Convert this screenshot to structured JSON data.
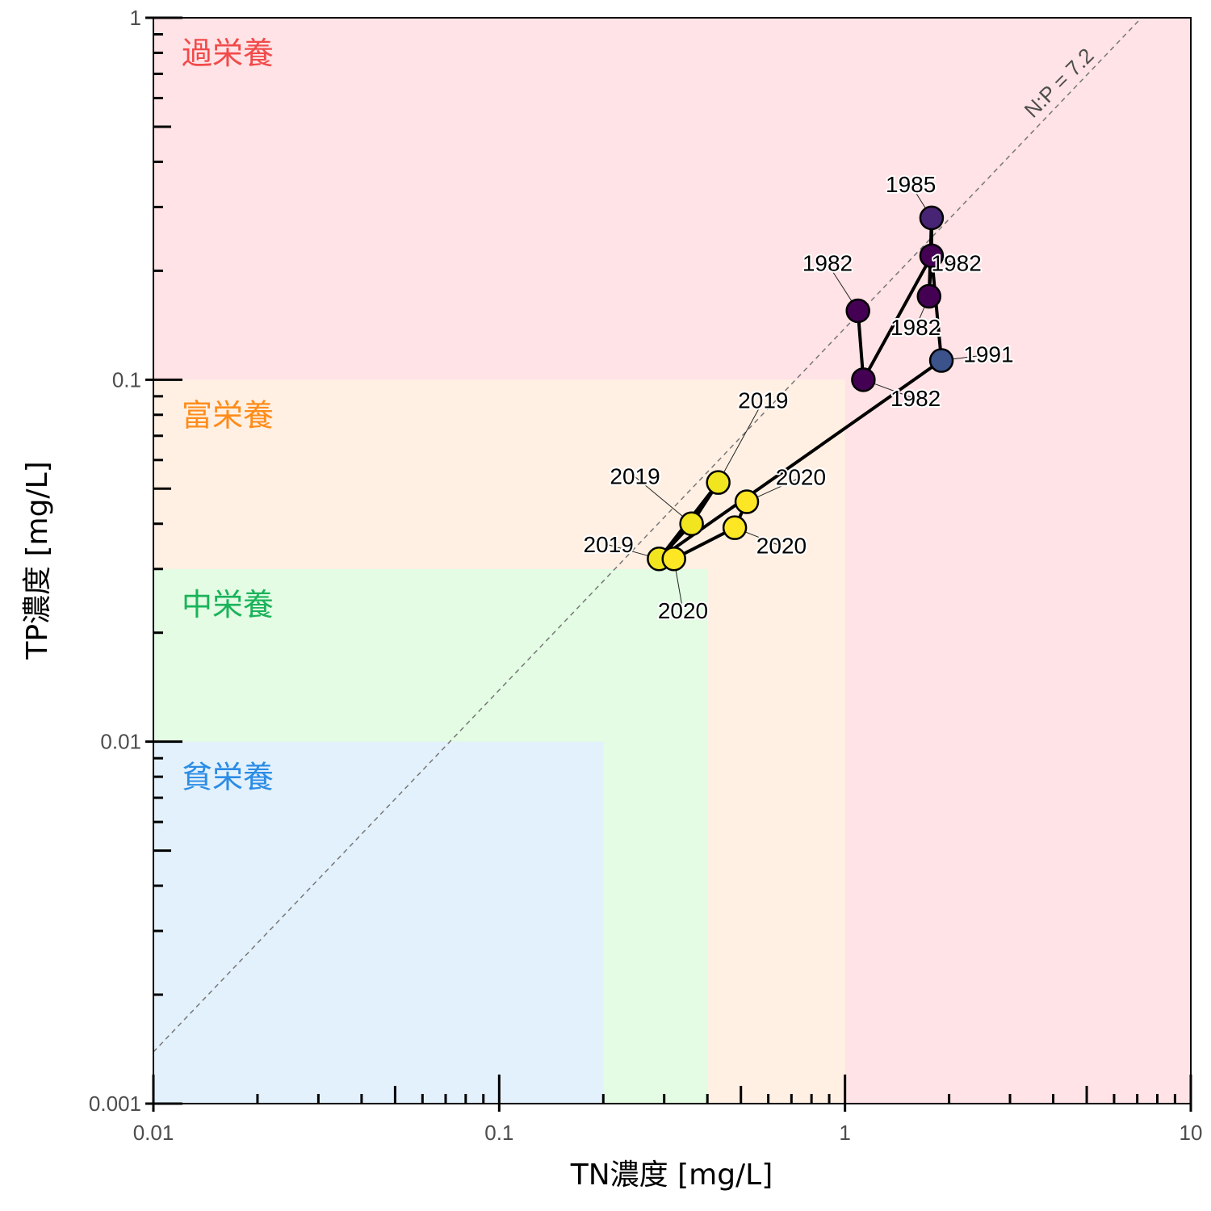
{
  "chart_data": {
    "type": "scatter",
    "xlabel": "TN濃度 [mg/L]",
    "ylabel": "TP濃度 [mg/L]",
    "xscale": "log",
    "yscale": "log",
    "xlim": [
      0.01,
      10
    ],
    "ylim": [
      0.001,
      1
    ],
    "x_ticks": [
      "0.01",
      "0.1",
      "1",
      "10"
    ],
    "y_ticks": [
      "0.001",
      "0.01",
      "0.1",
      "1"
    ],
    "zones": [
      {
        "label": "過栄養",
        "color": "#ffe3e6",
        "text_color": "#f24a4a",
        "tn_max": 10,
        "tp_max": 1
      },
      {
        "label": "富栄養",
        "color": "#fff0e3",
        "text_color": "#ff8c1a",
        "tn_max": 1,
        "tp_max": 0.1
      },
      {
        "label": "中栄養",
        "color": "#e3fce3",
        "text_color": "#1ab35a",
        "tn_max": 0.4,
        "tp_max": 0.03
      },
      {
        "label": "貧栄養",
        "color": "#e3f1fc",
        "text_color": "#2b8ce6",
        "tn_max": 0.2,
        "tp_max": 0.01
      }
    ],
    "reference_line": {
      "label": "N:P = 7.2",
      "ratio": 7.2,
      "color": "#777777"
    },
    "points": [
      {
        "year": "1982",
        "x": 1.09,
        "y": 0.155,
        "color": "#440154"
      },
      {
        "year": "1982",
        "x": 1.13,
        "y": 0.1,
        "color": "#440154"
      },
      {
        "year": "1982",
        "x": 1.78,
        "y": 0.22,
        "color": "#440154"
      },
      {
        "year": "1982",
        "x": 1.75,
        "y": 0.17,
        "color": "#440154"
      },
      {
        "year": "1985",
        "x": 1.78,
        "y": 0.28,
        "color": "#482475"
      },
      {
        "year": "1991",
        "x": 1.9,
        "y": 0.113,
        "color": "#3b528b"
      },
      {
        "year": "2019",
        "x": 0.43,
        "y": 0.052,
        "color": "#f0e51e"
      },
      {
        "year": "2019",
        "x": 0.36,
        "y": 0.04,
        "color": "#f0e51e"
      },
      {
        "year": "2019",
        "x": 0.29,
        "y": 0.032,
        "color": "#f0e51e"
      },
      {
        "year": "2020",
        "x": 0.52,
        "y": 0.046,
        "color": "#fde725"
      },
      {
        "year": "2020",
        "x": 0.48,
        "y": 0.039,
        "color": "#fde725"
      },
      {
        "year": "2020",
        "x": 0.32,
        "y": 0.032,
        "color": "#fde725"
      }
    ],
    "path": [
      [
        1.09,
        0.155
      ],
      [
        1.13,
        0.1
      ],
      [
        1.78,
        0.22
      ],
      [
        1.75,
        0.17
      ],
      [
        1.78,
        0.28
      ],
      [
        1.78,
        0.22
      ],
      [
        1.9,
        0.113
      ],
      [
        0.29,
        0.032
      ],
      [
        0.43,
        0.052
      ],
      [
        0.36,
        0.04
      ],
      [
        0.29,
        0.032
      ],
      [
        0.32,
        0.032
      ],
      [
        0.48,
        0.039
      ],
      [
        0.52,
        0.046
      ]
    ],
    "labels": [
      {
        "text": "1985",
        "x": 1.55,
        "y": 0.33,
        "px": 1.78,
        "py": 0.28
      },
      {
        "text": "1982",
        "x": 2.1,
        "y": 0.2,
        "px": 1.78,
        "py": 0.22
      },
      {
        "text": "1982",
        "x": 0.89,
        "y": 0.2,
        "px": 1.09,
        "py": 0.155
      },
      {
        "text": "1982",
        "x": 1.6,
        "y": 0.133,
        "px": 1.75,
        "py": 0.17
      },
      {
        "text": "1982",
        "x": 1.6,
        "y": 0.0845,
        "px": 1.13,
        "py": 0.1
      },
      {
        "text": "1991",
        "x": 2.6,
        "y": 0.112,
        "px": 1.9,
        "py": 0.113
      },
      {
        "text": "2019",
        "x": 0.58,
        "y": 0.0835,
        "px": 0.43,
        "py": 0.052
      },
      {
        "text": "2019",
        "x": 0.247,
        "y": 0.0515,
        "px": 0.36,
        "py": 0.04
      },
      {
        "text": "2019",
        "x": 0.207,
        "y": 0.0334,
        "px": 0.29,
        "py": 0.032
      },
      {
        "text": "2020",
        "x": 0.745,
        "y": 0.0513,
        "px": 0.52,
        "py": 0.046
      },
      {
        "text": "2020",
        "x": 0.655,
        "y": 0.0331,
        "px": 0.48,
        "py": 0.039
      },
      {
        "text": "2020",
        "x": 0.34,
        "y": 0.0219,
        "px": 0.32,
        "py": 0.032
      }
    ]
  }
}
